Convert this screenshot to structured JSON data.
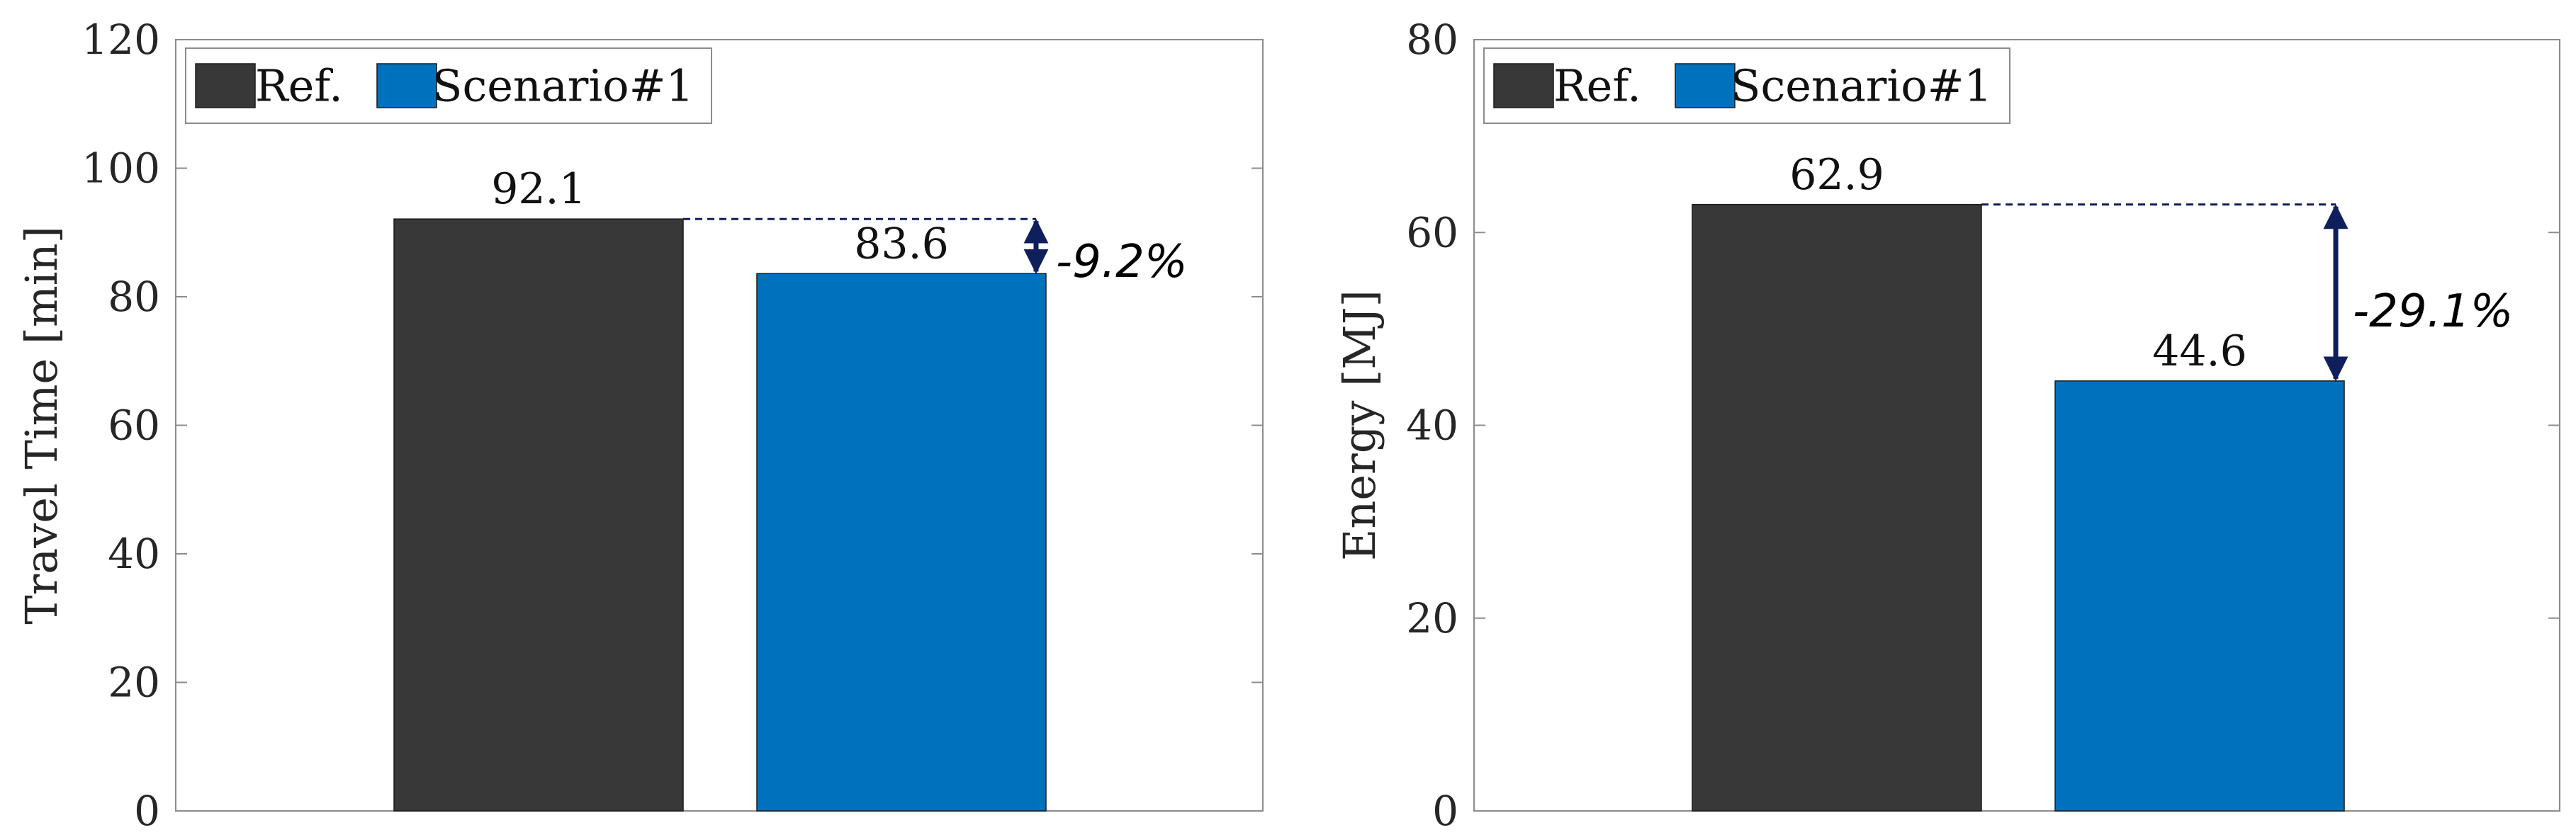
{
  "chart_data": [
    {
      "type": "bar",
      "title": "",
      "xlabel": "",
      "ylabel": "Travel Time [min]",
      "ylim": [
        0,
        120
      ],
      "yticks": [
        "0",
        "20",
        "40",
        "60",
        "80",
        "100",
        "120"
      ],
      "grid": false,
      "legend_position": "top-left",
      "series": [
        {
          "name": "Ref.",
          "values": [
            92.1
          ],
          "value_labels": [
            "92.1"
          ],
          "color": "#383838"
        },
        {
          "name": "Scenario#1",
          "values": [
            83.6
          ],
          "value_labels": [
            "83.6"
          ],
          "color": "#0072BD"
        }
      ],
      "annotation": {
        "text": "-9.2%",
        "from_value": 92.1,
        "to_value": 83.6,
        "color": "#0F1F5C"
      }
    },
    {
      "type": "bar",
      "title": "",
      "xlabel": "",
      "ylabel": "Energy [MJ]",
      "ylim": [
        0,
        80
      ],
      "yticks": [
        "0",
        "20",
        "40",
        "60",
        "80"
      ],
      "grid": false,
      "legend_position": "top-left",
      "series": [
        {
          "name": "Ref.",
          "values": [
            62.9
          ],
          "value_labels": [
            "62.9"
          ],
          "color": "#383838"
        },
        {
          "name": "Scenario#1",
          "values": [
            44.6
          ],
          "value_labels": [
            "44.6"
          ],
          "color": "#0072BD"
        }
      ],
      "annotation": {
        "text": "-29.1%",
        "from_value": 62.9,
        "to_value": 44.6,
        "color": "#0F1F5C"
      }
    }
  ]
}
